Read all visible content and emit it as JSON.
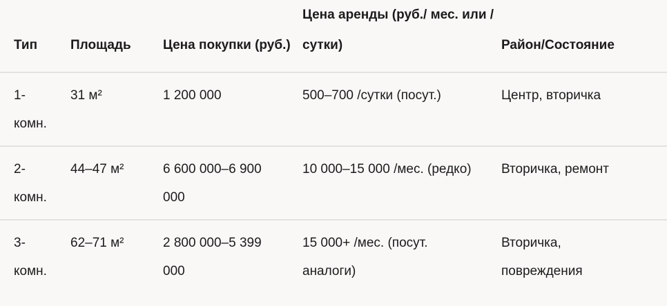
{
  "table": {
    "headers": [
      "Тип",
      "Площадь",
      "Цена покупки (руб.)",
      "Цена аренды (руб./ мес. или /сутки)",
      "Район/Состояние"
    ],
    "rows": [
      [
        "1-комн.",
        "31 м²",
        "1 200 000",
        "500–700 /сутки (посут.)",
        "Центр, вторичка"
      ],
      [
        "2-комн.",
        "44–47 м²",
        "6 600 000–6 900 000",
        "10 000–15 000 /мес. (редко)",
        "Вторичка, ремонт"
      ],
      [
        "3-комн.",
        "62–71 м²",
        "2 800 000–5 399 000",
        "15 000+ /мес. (посут. аналоги)",
        "Вторичка, повреждения"
      ]
    ]
  }
}
